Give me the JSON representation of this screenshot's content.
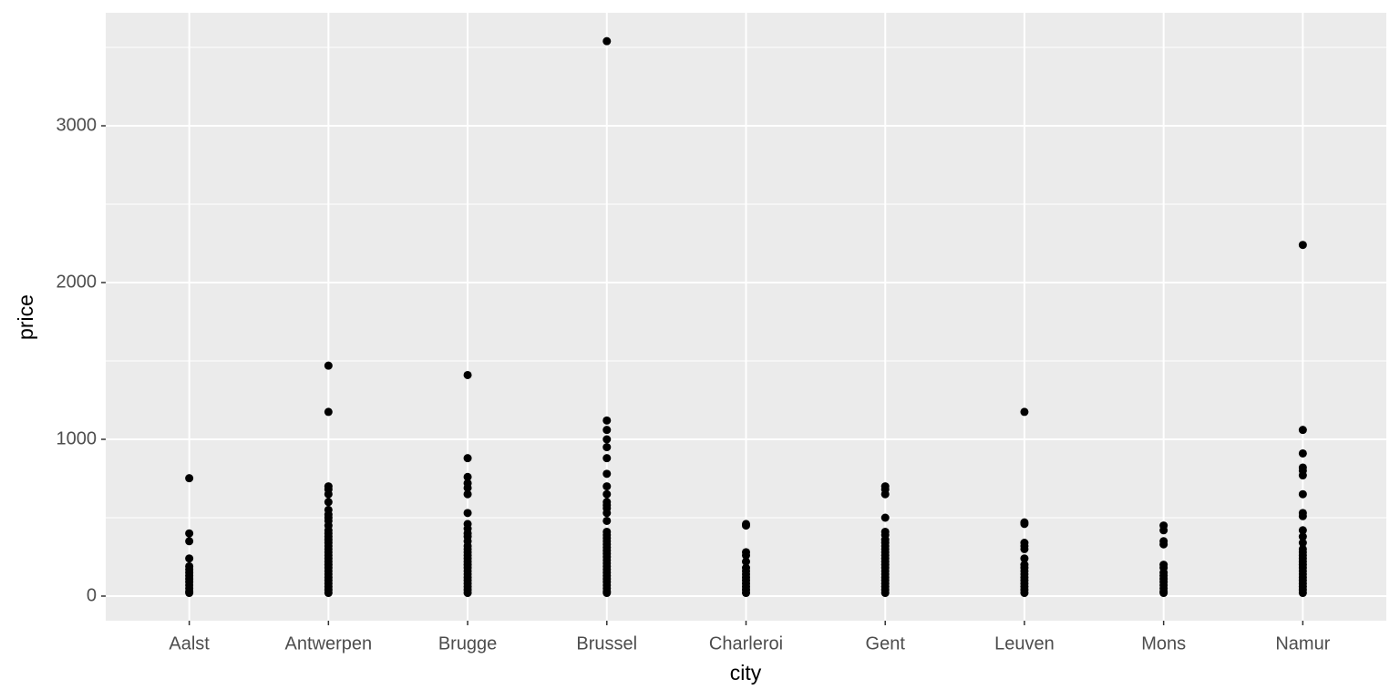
{
  "chart_data": {
    "type": "scatter",
    "x_label": "city",
    "y_label": "price",
    "categories": [
      "Aalst",
      "Antwerpen",
      "Brugge",
      "Brussel",
      "Charleroi",
      "Gent",
      "Leuven",
      "Mons",
      "Namur"
    ],
    "values": [
      [
        752,
        400,
        350,
        240,
        190,
        170,
        150,
        130,
        110,
        90,
        70,
        50,
        30,
        20
      ],
      [
        1470,
        1175,
        700,
        680,
        650,
        600,
        550,
        520,
        500,
        480,
        450,
        420,
        400,
        380,
        360,
        340,
        320,
        300,
        280,
        260,
        240,
        220,
        200,
        180,
        160,
        140,
        120,
        100,
        80,
        60,
        40,
        20
      ],
      [
        1410,
        880,
        760,
        720,
        690,
        650,
        530,
        460,
        430,
        400,
        380,
        350,
        320,
        300,
        280,
        260,
        240,
        220,
        200,
        180,
        160,
        140,
        120,
        100,
        80,
        60,
        40,
        20
      ],
      [
        3540,
        1120,
        1060,
        1000,
        950,
        880,
        780,
        700,
        650,
        600,
        580,
        560,
        530,
        480,
        410,
        390,
        370,
        350,
        330,
        310,
        290,
        270,
        250,
        230,
        210,
        190,
        170,
        150,
        130,
        110,
        90,
        70,
        50,
        30,
        20
      ],
      [
        460,
        450,
        280,
        260,
        220,
        180,
        160,
        140,
        120,
        100,
        80,
        60,
        40,
        20
      ],
      [
        700,
        680,
        650,
        500,
        410,
        390,
        360,
        340,
        320,
        300,
        280,
        260,
        240,
        220,
        200,
        180,
        160,
        140,
        120,
        100,
        80,
        60,
        40,
        20
      ],
      [
        1175,
        470,
        460,
        340,
        320,
        300,
        240,
        200,
        180,
        160,
        140,
        120,
        100,
        80,
        60,
        40,
        20
      ],
      [
        450,
        420,
        350,
        330,
        200,
        180,
        150,
        130,
        110,
        90,
        70,
        50,
        30,
        20
      ],
      [
        2240,
        1060,
        910,
        820,
        800,
        770,
        650,
        530,
        510,
        420,
        380,
        340,
        300,
        280,
        260,
        240,
        220,
        200,
        180,
        160,
        140,
        120,
        100,
        80,
        60,
        40,
        20
      ]
    ],
    "color": "#000000",
    "ylim": [
      -157,
      3721
    ],
    "yticks": [
      0,
      1000,
      2000,
      3000
    ],
    "grid": true
  }
}
